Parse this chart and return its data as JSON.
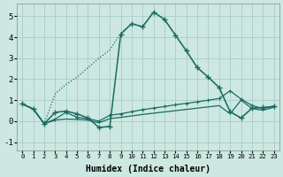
{
  "xlabel": "Humidex (Indice chaleur)",
  "bg_color": "#cce8e0",
  "grid_color": "#aacccc",
  "line_color": "#1a6b60",
  "xlim": [
    -0.5,
    23.5
  ],
  "ylim": [
    -1.4,
    5.6
  ],
  "xticks": [
    0,
    1,
    2,
    3,
    4,
    5,
    6,
    7,
    8,
    9,
    10,
    11,
    12,
    13,
    14,
    15,
    16,
    17,
    18,
    19,
    20,
    21,
    22,
    23
  ],
  "yticks": [
    -1,
    0,
    1,
    2,
    3,
    4,
    5
  ],
  "dot_line_x": [
    0,
    1,
    2,
    3,
    4,
    5,
    6,
    7,
    8,
    9,
    10,
    11,
    12,
    13,
    14,
    15,
    16,
    17,
    18,
    19,
    20,
    21,
    22,
    23
  ],
  "dot_line_y": [
    0.82,
    0.58,
    -0.12,
    1.3,
    1.75,
    2.1,
    2.55,
    3.0,
    3.4,
    4.2,
    4.65,
    4.5,
    5.2,
    4.85,
    4.1,
    3.35,
    2.55,
    2.1,
    1.6,
    0.45,
    0.15,
    0.62,
    0.65,
    0.7
  ],
  "spike_line_x": [
    0,
    1,
    2,
    3,
    4,
    5,
    6,
    7,
    8,
    9,
    10,
    11,
    12,
    13,
    14,
    15,
    16,
    17,
    18,
    19,
    20,
    21,
    22,
    23
  ],
  "spike_line_y": [
    0.82,
    0.58,
    -0.12,
    0.42,
    0.48,
    0.35,
    0.15,
    -0.3,
    -0.25,
    4.15,
    4.65,
    4.5,
    5.2,
    4.85,
    4.1,
    3.35,
    2.55,
    2.1,
    1.6,
    0.45,
    0.15,
    0.62,
    0.65,
    0.7
  ],
  "flat_line1_x": [
    0,
    1,
    2,
    3,
    4,
    5,
    6,
    7,
    8,
    9,
    10,
    11,
    12,
    13,
    14,
    15,
    16,
    17,
    18,
    19,
    20,
    21,
    22,
    23
  ],
  "flat_line1_y": [
    0.82,
    0.58,
    -0.12,
    0.1,
    0.42,
    0.18,
    0.12,
    0.0,
    0.28,
    0.35,
    0.45,
    0.55,
    0.62,
    0.7,
    0.78,
    0.85,
    0.92,
    1.0,
    1.08,
    1.45,
    1.05,
    0.75,
    0.6,
    0.72
  ],
  "flat_line2_x": [
    0,
    1,
    2,
    3,
    4,
    5,
    6,
    7,
    8,
    9,
    10,
    11,
    12,
    13,
    14,
    15,
    16,
    17,
    18,
    19,
    20,
    21,
    22,
    23
  ],
  "flat_line2_y": [
    0.82,
    0.58,
    -0.12,
    0.05,
    0.1,
    0.08,
    0.05,
    -0.08,
    0.12,
    0.18,
    0.25,
    0.32,
    0.38,
    0.44,
    0.5,
    0.56,
    0.62,
    0.68,
    0.74,
    0.35,
    1.0,
    0.6,
    0.52,
    0.66
  ]
}
